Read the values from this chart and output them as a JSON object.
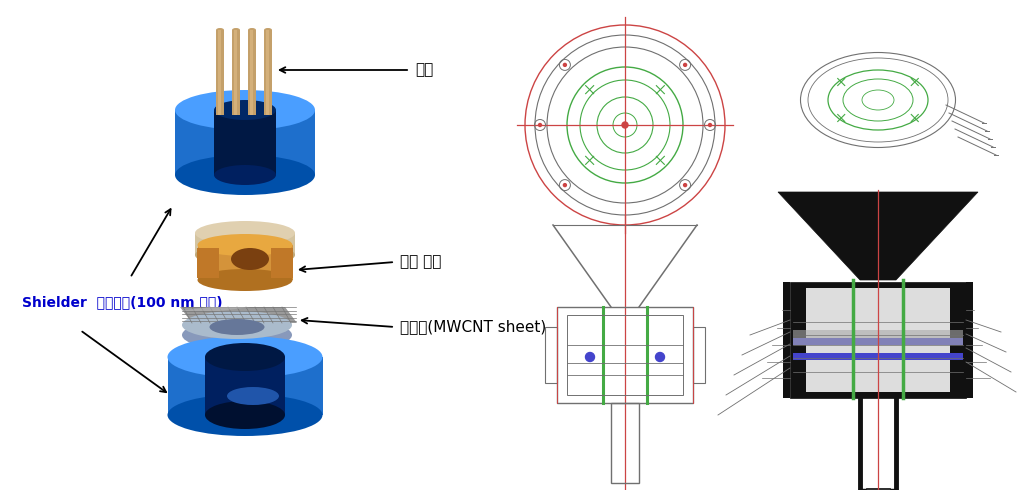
{
  "bg_color": "#ffffff",
  "figsize": [
    10.35,
    4.9
  ],
  "dpi": 100,
  "labels": {
    "electrode": "전극",
    "inner_electrode": "내부 전극",
    "nanoweb": "나노웹(MWCNT sheet)",
    "shielder": "Shielder  다공성판(100 nm 이상)"
  },
  "label_color_blue": "#0000CC",
  "label_color_black": "#000000",
  "blue_part_color": "#1E6FCC",
  "blue_part_light": "#4A9EFF",
  "blue_part_dark": "#0050AA",
  "rod_color": "#C4A06A",
  "rod_light": "#D4B07A",
  "beige_color": "#E0D0B0",
  "beige_dark": "#C0A878",
  "orange_color": "#D4933A",
  "orange_light": "#E8A840",
  "orange_dark": "#B07020",
  "gray_mesh": "#909090",
  "gray_mesh_dark": "#707070",
  "gray_disc_color": "#8899BB",
  "cad_gray": "#707070",
  "cad_red": "#CC4444",
  "cad_green": "#44AA44",
  "cad_blue_line": "#4444CC",
  "cad_dark": "#222222"
}
